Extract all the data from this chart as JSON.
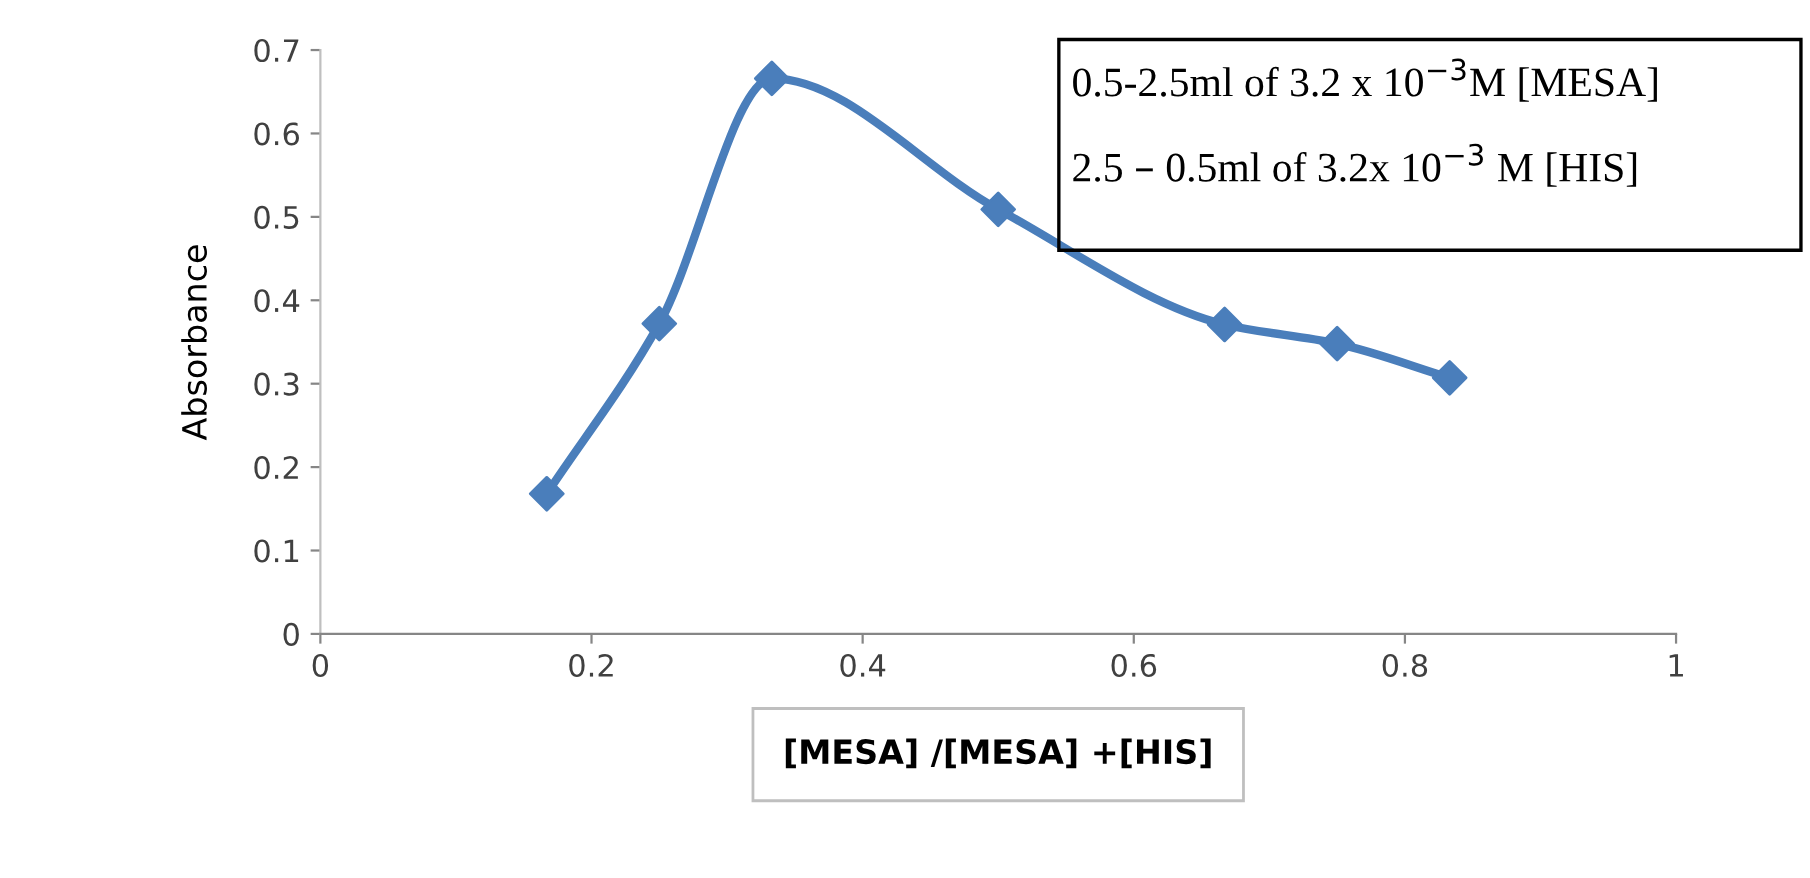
{
  "chart_data": {
    "type": "line",
    "xlabel": "[MESA] /[MESA] +[HIS]",
    "ylabel": "Absorbance",
    "x": [
      0.167,
      0.25,
      0.333,
      0.5,
      0.667,
      0.75,
      0.833
    ],
    "series": [
      {
        "color": "#4a7ebb",
        "values": [
          0.168,
          0.372,
          0.666,
          0.509,
          0.371,
          0.348,
          0.307
        ]
      }
    ],
    "xlim": [
      0,
      1
    ],
    "xticks": [
      0,
      0.2,
      0.4,
      0.6,
      0.8,
      1
    ],
    "ylim": [
      0,
      0.7
    ],
    "yticks": [
      0,
      0.1,
      0.2,
      0.3,
      0.4,
      0.5,
      0.6,
      0.7
    ],
    "marker": "diamond",
    "line_style": "solid",
    "grid": false,
    "annotations": [
      "0.5-2.5ml of 3.2 x 10$^{−3}$M [MESA]",
      "2.5 – 0.5ml of 3.2x 10$^{−3}$ M [HIS]"
    ]
  }
}
